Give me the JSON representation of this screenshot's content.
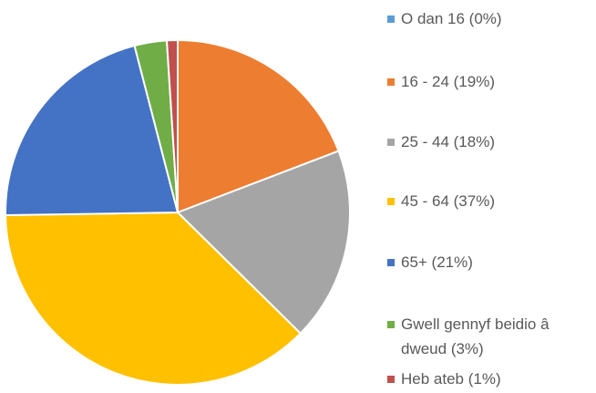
{
  "chart_data": {
    "type": "pie",
    "categories": [
      "O dan 16 (0%)",
      "16 - 24  (19%)",
      "25 - 44  (18%)",
      "45 - 64  (37%)",
      "65+ (21%)",
      "Gwell gennyf beidio â dweud (3%)",
      "Heb ateb (1%)"
    ],
    "values": [
      0,
      19,
      18,
      37,
      21,
      3,
      1
    ],
    "colors": [
      "#5b9bd5",
      "#ed7d31",
      "#a5a5a5",
      "#ffc000",
      "#4472c4",
      "#70ad47",
      "#c0504d"
    ],
    "legend": "right"
  }
}
